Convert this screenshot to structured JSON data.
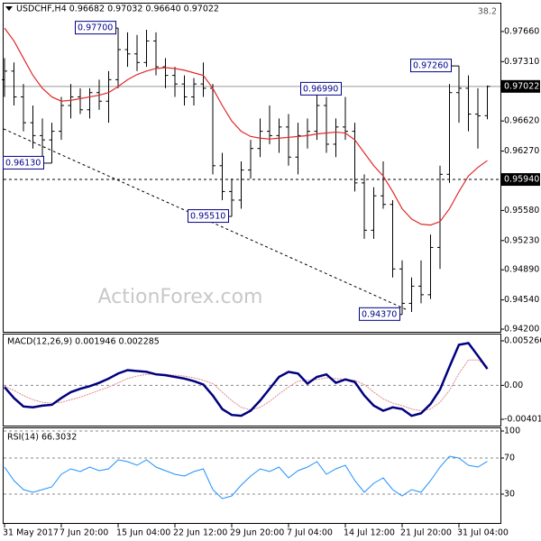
{
  "chart_data": [
    {
      "type": "ohlc",
      "title": "USDCHF,H4 0.96682 0.97032 0.96640 0.97022",
      "fib_label": "38.2",
      "watermark": "ActionForex.com",
      "categories": [
        "31 May 2017",
        null,
        null,
        null,
        null,
        null,
        "7 Jun 20:00",
        null,
        null,
        null,
        null,
        null,
        "15 Jun 04:00",
        null,
        null,
        null,
        null,
        null,
        "22 Jun 12:00",
        null,
        null,
        null,
        null,
        null,
        "29 Jun 20:00",
        null,
        null,
        null,
        null,
        null,
        "7 Jul 04:00",
        null,
        null,
        null,
        null,
        null,
        "14 Jul 12:00",
        null,
        null,
        null,
        null,
        null,
        "21 Jul 20:00",
        null,
        null,
        null,
        null,
        null,
        "31 Jul 04:00",
        null,
        null,
        null
      ],
      "color": "#000000",
      "open": [
        0.971,
        0.972,
        0.969,
        0.966,
        0.9645,
        0.964,
        0.965,
        0.968,
        0.969,
        0.9675,
        0.9695,
        0.9685,
        0.971,
        0.9745,
        0.974,
        0.973,
        0.9755,
        0.9725,
        0.9715,
        0.9705,
        0.969,
        0.9705,
        0.97,
        0.961,
        0.958,
        0.957,
        0.9605,
        0.963,
        0.965,
        0.9645,
        0.9655,
        0.962,
        0.9645,
        0.965,
        0.968,
        0.9635,
        0.9655,
        0.965,
        0.959,
        0.9535,
        0.9575,
        0.9565,
        0.949,
        0.945,
        0.947,
        0.946,
        0.9515,
        0.96,
        0.9695,
        0.97,
        0.967,
        0.96682
      ],
      "high": [
        0.9735,
        0.973,
        0.9705,
        0.968,
        0.9665,
        0.966,
        0.969,
        0.9705,
        0.97,
        0.97,
        0.971,
        0.972,
        0.977,
        0.9765,
        0.9762,
        0.9768,
        0.9765,
        0.9735,
        0.9725,
        0.9715,
        0.9712,
        0.973,
        0.9705,
        0.9625,
        0.9595,
        0.9615,
        0.964,
        0.9665,
        0.968,
        0.9665,
        0.967,
        0.966,
        0.9665,
        0.9699,
        0.969,
        0.9665,
        0.969,
        0.966,
        0.96,
        0.9585,
        0.9615,
        0.957,
        0.95,
        0.948,
        0.95,
        0.953,
        0.961,
        0.9705,
        0.9726,
        0.9715,
        0.97,
        0.97032
      ],
      "low": [
        0.969,
        0.968,
        0.965,
        0.963,
        0.962,
        0.9613,
        0.964,
        0.9665,
        0.967,
        0.9665,
        0.9675,
        0.966,
        0.97,
        0.9725,
        0.972,
        0.9725,
        0.9715,
        0.97,
        0.969,
        0.968,
        0.968,
        0.969,
        0.96,
        0.957,
        0.9551,
        0.956,
        0.9595,
        0.962,
        0.9635,
        0.9625,
        0.961,
        0.96,
        0.963,
        0.964,
        0.9625,
        0.962,
        0.964,
        0.958,
        0.9525,
        0.9525,
        0.956,
        0.948,
        0.9437,
        0.944,
        0.945,
        0.9455,
        0.949,
        0.959,
        0.966,
        0.965,
        0.963,
        0.9664
      ],
      "close": [
        0.972,
        0.969,
        0.966,
        0.9645,
        0.964,
        0.965,
        0.968,
        0.969,
        0.9675,
        0.9695,
        0.9685,
        0.971,
        0.9745,
        0.974,
        0.973,
        0.9755,
        0.9725,
        0.9715,
        0.9705,
        0.969,
        0.9705,
        0.97,
        0.961,
        0.958,
        0.957,
        0.9605,
        0.963,
        0.965,
        0.9645,
        0.9655,
        0.962,
        0.9645,
        0.965,
        0.968,
        0.9635,
        0.9655,
        0.965,
        0.959,
        0.9535,
        0.9575,
        0.9565,
        0.949,
        0.945,
        0.947,
        0.946,
        0.9515,
        0.96,
        0.9695,
        0.97,
        0.967,
        0.9668,
        0.97022
      ],
      "ma": {
        "color": "#e02828",
        "values": [
          0.977,
          0.9755,
          0.9735,
          0.9715,
          0.97,
          0.969,
          0.9685,
          0.9686,
          0.9688,
          0.969,
          0.9692,
          0.9695,
          0.9702,
          0.971,
          0.9716,
          0.972,
          0.9723,
          0.9724,
          0.9723,
          0.9721,
          0.9718,
          0.9715,
          0.97,
          0.968,
          0.9662,
          0.965,
          0.9644,
          0.9642,
          0.9641,
          0.9642,
          0.9643,
          0.9644,
          0.9645,
          0.9647,
          0.9648,
          0.9649,
          0.9648,
          0.964,
          0.9625,
          0.961,
          0.9598,
          0.958,
          0.956,
          0.9548,
          0.9542,
          0.9541,
          0.9545,
          0.956,
          0.958,
          0.9598,
          0.9608,
          0.9616
        ]
      },
      "ylim": [
        0.94169,
        0.97995
      ],
      "yticks": [
        {
          "value": 0.9766,
          "label": "0.97660"
        },
        {
          "value": 0.9731,
          "label": "0.97310"
        },
        {
          "value": 0.9662,
          "label": "0.96620"
        },
        {
          "value": 0.9627,
          "label": "0.96270"
        },
        {
          "value": 0.9558,
          "label": "0.95580"
        },
        {
          "value": 0.9523,
          "label": "0.95230"
        },
        {
          "value": 0.9489,
          "label": "0.94890"
        },
        {
          "value": 0.9454,
          "label": "0.94540"
        },
        {
          "value": 0.942,
          "label": "0.94200"
        }
      ],
      "levels": [
        {
          "value": 0.97022,
          "label": "0.97022"
        },
        {
          "value": 0.9594,
          "label": "0.95940"
        }
      ],
      "annotations": [
        {
          "value": 0.977,
          "label": "0.97700"
        },
        {
          "value": 0.9613,
          "label": "0.96130"
        },
        {
          "value": 0.9551,
          "label": "0.95510"
        },
        {
          "value": 0.9699,
          "label": "0.96990"
        },
        {
          "value": 0.9437,
          "label": "0.94370"
        },
        {
          "value": 0.9726,
          "label": "0.97260"
        }
      ]
    },
    {
      "type": "macd",
      "title": "MACD(12,26,9) 0.001946 0.002285",
      "series": [
        {
          "color": "#00007f",
          "values": [
            -0.0002,
            -0.0015,
            -0.0025,
            -0.0026,
            -0.0024,
            -0.0023,
            -0.0015,
            -0.0008,
            -0.0004,
            -0.0001,
            0.0003,
            0.0008,
            0.0014,
            0.0018,
            0.0017,
            0.0016,
            0.0013,
            0.0012,
            0.001,
            0.0008,
            0.0005,
            0.0001,
            -0.0012,
            -0.0028,
            -0.0035,
            -0.0036,
            -0.003,
            -0.0018,
            -0.0004,
            0.001,
            0.0016,
            0.0014,
            0.0002,
            0.001,
            0.0013,
            0.0003,
            0.0007,
            0.0004,
            -0.0012,
            -0.0024,
            -0.003,
            -0.0026,
            -0.0028,
            -0.0036,
            -0.0033,
            -0.0022,
            -0.0005,
            0.0022,
            0.0048,
            0.005,
            0.0035,
            0.001946
          ]
        },
        {
          "color": "#e08a8a",
          "values": [
            -0.0001,
            -0.0006,
            -0.0012,
            -0.0017,
            -0.002,
            -0.0021,
            -0.002,
            -0.0017,
            -0.0014,
            -0.001,
            -0.0006,
            -0.0002,
            0.0003,
            0.0008,
            0.0011,
            0.0013,
            0.0014,
            0.0013,
            0.0012,
            0.0011,
            0.0009,
            0.0006,
            0.0002,
            -0.0008,
            -0.0018,
            -0.0026,
            -0.0029,
            -0.0026,
            -0.0019,
            -0.001,
            -0.0002,
            0.0005,
            0.0006,
            0.0007,
            0.0009,
            0.0008,
            0.0007,
            0.0006,
            0.0001,
            -0.0008,
            -0.0016,
            -0.0021,
            -0.0024,
            -0.0028,
            -0.003,
            -0.0028,
            -0.002,
            -0.0006,
            0.0014,
            0.003,
            0.003,
            0.002285
          ]
        }
      ],
      "ylim": [
        -0.004757,
        0.006119
      ],
      "yticks": [
        0.005266,
        {
          "value": 0,
          "label": "0.00"
        },
        -0.004011
      ]
    },
    {
      "type": "line",
      "title": "RSI(14) 66.3032",
      "color": "#1e90ff",
      "values": [
        60,
        45,
        35,
        32,
        35,
        38,
        52,
        58,
        55,
        60,
        56,
        58,
        68,
        66,
        62,
        68,
        60,
        56,
        52,
        50,
        55,
        58,
        35,
        25,
        28,
        40,
        50,
        58,
        55,
        60,
        48,
        56,
        60,
        66,
        52,
        58,
        62,
        45,
        32,
        42,
        48,
        35,
        28,
        35,
        32,
        45,
        60,
        72,
        70,
        62,
        60,
        66.3032
      ],
      "ylim": [
        -2,
        104
      ],
      "yticks": [
        100,
        70,
        30
      ]
    }
  ]
}
